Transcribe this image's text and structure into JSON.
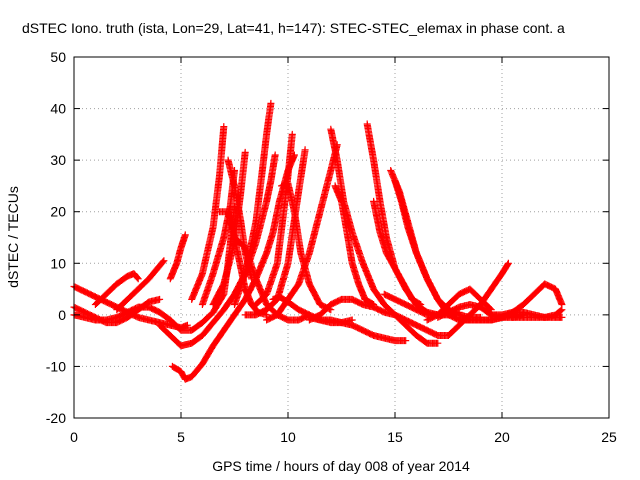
{
  "chart_data": {
    "type": "scatter",
    "title": "dSTEC Iono. truth (ista, Lon=29, Lat=41, h=147): STEC-STEC_elemax in phase cont. a",
    "xlabel": "GPS time / hours of day 008 of year 2014",
    "ylabel": "dSTEC  / TECUs",
    "xlim": [
      0,
      25
    ],
    "ylim": [
      -20,
      50
    ],
    "xticks": [
      0,
      5,
      10,
      15,
      20,
      25
    ],
    "yticks": [
      -20,
      -10,
      0,
      10,
      20,
      30,
      40,
      50
    ],
    "grid": true,
    "marker": "+",
    "colors": {
      "series": "#ff0000"
    },
    "series": [
      {
        "x": [
          0.0,
          0.5,
          1.0,
          1.5,
          2.0,
          2.5,
          3.0,
          3.5,
          4.0,
          4.5,
          5.0,
          5.3
        ],
        "y": [
          5.5,
          4.5,
          3.5,
          2.5,
          1.5,
          0.5,
          -0.5,
          -1.0,
          -1.5,
          -2.0,
          -2.5,
          -2.0
        ]
      },
      {
        "x": [
          0.0,
          0.5,
          1.0,
          1.5,
          2.0,
          2.5,
          3.0,
          3.5,
          4.0
        ],
        "y": [
          1.5,
          0.5,
          -0.5,
          -1.5,
          -1.5,
          -0.5,
          1.0,
          2.5,
          3.0
        ]
      },
      {
        "x": [
          0.0,
          0.5,
          1.0,
          1.5,
          2.0,
          2.5,
          3.0,
          3.5,
          4.0,
          4.5,
          5.0,
          5.5,
          6.0,
          6.5,
          7.0,
          7.2,
          7.5
        ],
        "y": [
          0.0,
          -0.5,
          -1.0,
          -1.0,
          -0.5,
          0.5,
          1.5,
          1.5,
          0.5,
          -1.0,
          -3.0,
          -3.0,
          -1.5,
          0.5,
          4.0,
          10.0,
          21.0
        ]
      },
      {
        "x": [
          1.0,
          1.5,
          2.0,
          2.5,
          2.8,
          3.0
        ],
        "y": [
          2.0,
          4.0,
          6.0,
          7.5,
          8.0,
          7.0
        ]
      },
      {
        "x": [
          2.0,
          2.5,
          3.0,
          3.5,
          3.8,
          4.0,
          4.2
        ],
        "y": [
          1.0,
          3.0,
          5.0,
          7.0,
          8.5,
          9.5,
          10.5
        ]
      },
      {
        "x": [
          4.0,
          4.5,
          5.0,
          5.5,
          6.0,
          6.5,
          7.0,
          7.5,
          8.0,
          8.5,
          9.0,
          9.2,
          9.4
        ],
        "y": [
          -2.0,
          -4.0,
          -6.0,
          -5.5,
          -4.0,
          -1.5,
          1.0,
          4.0,
          8.0,
          14.0,
          22.0,
          26.0,
          31.0
        ]
      },
      {
        "x": [
          4.5,
          4.8,
          5.0,
          5.2
        ],
        "y": [
          7.0,
          10.0,
          13.0,
          15.5
        ]
      },
      {
        "x": [
          4.6,
          5.0,
          5.2,
          5.5,
          6.0,
          6.5,
          7.0,
          7.5,
          8.0,
          8.5,
          9.0,
          9.3,
          9.6,
          10.0,
          10.3
        ],
        "y": [
          -10.0,
          -11.0,
          -12.5,
          -12.0,
          -9.5,
          -6.0,
          -3.0,
          0.0,
          3.0,
          7.0,
          12.0,
          16.0,
          22.0,
          28.0,
          31.0
        ]
      },
      {
        "x": [
          5.5,
          6.0,
          6.5,
          6.8,
          7.0
        ],
        "y": [
          3.0,
          8.0,
          17.0,
          27.0,
          36.5
        ]
      },
      {
        "x": [
          6.0,
          6.5,
          7.0,
          7.3,
          7.5
        ],
        "y": [
          2.0,
          8.0,
          15.0,
          21.0,
          28.0
        ]
      },
      {
        "x": [
          6.5,
          7.0,
          7.5,
          7.8,
          8.0
        ],
        "y": [
          2.0,
          6.0,
          14.0,
          24.0,
          31.5
        ]
      },
      {
        "x": [
          6.8,
          7.2,
          7.5,
          7.8,
          8.0,
          8.3,
          8.6,
          9.0
        ],
        "y": [
          20.0,
          20.0,
          15.0,
          9.0,
          5.0,
          2.0,
          0.5,
          0.0
        ]
      },
      {
        "x": [
          7.2,
          7.5,
          7.8,
          8.0,
          8.3
        ],
        "y": [
          30.0,
          25.0,
          18.0,
          12.0,
          7.0
        ]
      },
      {
        "x": [
          7.5,
          8.0,
          8.5,
          8.8,
          9.0,
          9.2
        ],
        "y": [
          2.0,
          8.0,
          18.0,
          28.0,
          35.0,
          41.0
        ]
      },
      {
        "x": [
          7.5,
          8.0,
          8.5,
          9.0,
          9.5,
          10.0,
          10.5,
          11.0
        ],
        "y": [
          15.0,
          13.0,
          7.0,
          2.0,
          0.0,
          -1.0,
          -1.0,
          0.0
        ]
      },
      {
        "x": [
          8.0,
          8.5,
          9.0,
          9.5,
          10.0,
          10.5,
          10.8
        ],
        "y": [
          0.0,
          0.0,
          1.0,
          3.0,
          10.0,
          24.0,
          32.0
        ]
      },
      {
        "x": [
          8.5,
          9.0,
          9.5,
          9.8,
          10.0,
          10.2
        ],
        "y": [
          2.0,
          4.0,
          10.0,
          20.0,
          27.0,
          35.0
        ]
      },
      {
        "x": [
          9.0,
          9.5,
          10.0,
          10.5,
          11.0,
          11.5,
          12.0,
          12.3
        ],
        "y": [
          -1.0,
          0.0,
          3.0,
          6.0,
          12.0,
          20.0,
          28.0,
          33.0
        ]
      },
      {
        "x": [
          9.3,
          9.6,
          10.0,
          10.5,
          11.0,
          11.5,
          12.0,
          12.5,
          13.0
        ],
        "y": [
          3.0,
          3.5,
          2.5,
          1.0,
          0.0,
          -1.0,
          -1.5,
          -1.5,
          -1.0
        ]
      },
      {
        "x": [
          9.7,
          10.0,
          10.3,
          10.6,
          11.0,
          11.5,
          12.0
        ],
        "y": [
          25.0,
          25.5,
          20.0,
          12.0,
          6.0,
          2.0,
          1.0
        ]
      },
      {
        "x": [
          11.0,
          11.5,
          12.0,
          12.5,
          13.0,
          13.5,
          14.0,
          14.5,
          15.0
        ],
        "y": [
          -1.0,
          0.0,
          2.0,
          3.0,
          3.0,
          2.0,
          1.5,
          0.5,
          0.0
        ]
      },
      {
        "x": [
          11.0,
          11.5,
          12.0,
          12.5,
          13.0,
          13.5,
          14.0,
          14.5,
          15.0,
          15.5
        ],
        "y": [
          -0.5,
          -1.0,
          -1.0,
          -1.5,
          -2.0,
          -3.0,
          -4.0,
          -4.5,
          -5.0,
          -5.0
        ]
      },
      {
        "x": [
          12.0,
          12.3,
          12.6,
          13.0,
          13.5,
          14.0,
          14.5,
          15.0,
          15.5,
          16.0,
          16.5,
          17.0
        ],
        "y": [
          36.0,
          30.0,
          22.0,
          16.0,
          10.0,
          5.0,
          2.0,
          0.0,
          -2.0,
          -4.0,
          -5.5,
          -5.5
        ]
      },
      {
        "x": [
          12.2,
          12.5,
          12.8,
          13.0,
          13.3,
          13.6,
          14.0
        ],
        "y": [
          25.0,
          22.0,
          15.0,
          10.0,
          6.0,
          3.0,
          2.0
        ]
      },
      {
        "x": [
          13.7,
          14.0,
          14.3,
          14.6,
          15.0,
          15.5,
          16.0,
          16.5,
          17.0,
          17.5,
          18.0
        ],
        "y": [
          37.0,
          30.0,
          22.0,
          15.0,
          9.0,
          5.0,
          2.0,
          0.5,
          0.0,
          0.0,
          0.5
        ]
      },
      {
        "x": [
          14.0,
          14.3,
          14.6,
          15.0,
          15.4,
          15.8,
          16.2
        ],
        "y": [
          22.0,
          16.0,
          12.0,
          9.0,
          6.0,
          3.0,
          2.0
        ]
      },
      {
        "x": [
          14.5,
          15.0,
          15.5,
          16.0,
          16.5,
          17.0
        ],
        "y": [
          4.0,
          3.0,
          2.0,
          1.0,
          0.0,
          0.0
        ]
      },
      {
        "x": [
          14.8,
          15.2,
          15.6,
          16.0,
          16.5,
          17.0,
          17.5,
          18.0,
          18.5
        ],
        "y": [
          28.0,
          24.0,
          18.0,
          12.0,
          7.0,
          3.0,
          0.0,
          -1.0,
          -1.0
        ]
      },
      {
        "x": [
          15.0,
          15.3,
          15.6,
          16.0,
          16.5,
          17.0,
          17.5,
          18.0,
          18.5,
          19.0
        ],
        "y": [
          26.0,
          22.0,
          17.0,
          12.0,
          7.0,
          3.0,
          1.0,
          0.0,
          -0.5,
          -0.5
        ]
      },
      {
        "x": [
          15.0,
          15.5,
          16.0,
          16.5,
          17.0,
          17.5,
          18.0,
          18.5,
          19.0,
          19.5,
          20.0,
          20.3
        ],
        "y": [
          0.0,
          -1.0,
          -2.0,
          -3.0,
          -4.0,
          -4.0,
          -2.0,
          0.0,
          2.0,
          5.0,
          8.0,
          10.0
        ]
      },
      {
        "x": [
          16.5,
          17.0,
          17.5,
          18.0,
          18.5,
          19.0,
          19.5
        ],
        "y": [
          -1.0,
          0.0,
          2.0,
          4.0,
          5.0,
          3.0,
          1.0
        ]
      },
      {
        "x": [
          17.0,
          17.5,
          18.0,
          18.5,
          19.0,
          19.5,
          20.0,
          20.5,
          21.0
        ],
        "y": [
          -0.5,
          0.5,
          1.5,
          2.0,
          1.5,
          0.0,
          -0.5,
          -0.5,
          0.0
        ]
      },
      {
        "x": [
          18.0,
          18.5,
          19.0,
          19.5,
          20.0,
          20.5,
          21.0
        ],
        "y": [
          -1.0,
          -1.0,
          -1.0,
          -1.0,
          -0.5,
          0.0,
          0.0
        ]
      },
      {
        "x": [
          18.0,
          18.5,
          19.0,
          19.5,
          20.0,
          20.5,
          21.0,
          21.5,
          22.0,
          22.5,
          22.8
        ],
        "y": [
          -1.0,
          -1.0,
          -1.0,
          -1.0,
          -0.5,
          0.5,
          2.0,
          4.0,
          6.0,
          5.0,
          2.0
        ]
      },
      {
        "x": [
          19.5,
          20.0,
          20.5,
          21.0,
          21.5,
          22.0,
          22.5,
          22.8
        ],
        "y": [
          0.0,
          0.0,
          0.5,
          0.5,
          0.0,
          -0.5,
          0.0,
          1.0
        ]
      },
      {
        "x": [
          20.5,
          21.0,
          21.5,
          22.0,
          22.5,
          22.8
        ],
        "y": [
          -0.5,
          -0.5,
          -0.5,
          -0.5,
          -0.5,
          -0.5
        ]
      }
    ]
  }
}
